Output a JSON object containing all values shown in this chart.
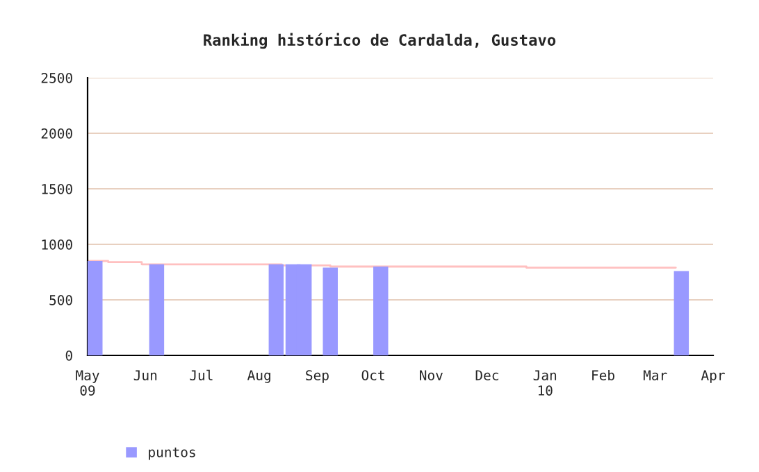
{
  "chart_data": {
    "type": "bar",
    "title": "Ranking histórico de Cardalda, Gustavo",
    "series": [
      {
        "name": "puntos",
        "color": "#9999ff",
        "x": [
          "2009-05-05",
          "2009-06-07",
          "2009-08-10",
          "2009-08-19",
          "2009-08-25",
          "2009-09-08",
          "2009-10-05",
          "2010-03-15"
        ],
        "values": [
          850,
          820,
          820,
          820,
          820,
          790,
          800,
          760
        ]
      },
      {
        "type": "step",
        "color": "#ffc0c0",
        "x": [
          "2009-05-01",
          "2009-05-12",
          "2009-05-30",
          "2009-08-13",
          "2009-09-08",
          "2009-12-22",
          "2010-03-12"
        ],
        "values": [
          850,
          840,
          820,
          810,
          800,
          790,
          790
        ]
      }
    ],
    "xlim": [
      "2009-05-01",
      "2010-04-01"
    ],
    "xticks": [
      {
        "value": "2009-05-01",
        "label": "May\n09"
      },
      {
        "value": "2009-06-01",
        "label": "Jun"
      },
      {
        "value": "2009-07-01",
        "label": "Jul"
      },
      {
        "value": "2009-08-01",
        "label": "Aug"
      },
      {
        "value": "2009-09-01",
        "label": "Sep"
      },
      {
        "value": "2009-10-01",
        "label": "Oct"
      },
      {
        "value": "2009-11-01",
        "label": "Nov"
      },
      {
        "value": "2009-12-01",
        "label": "Dec"
      },
      {
        "value": "2010-01-01",
        "label": "Jan\n10"
      },
      {
        "value": "2010-02-01",
        "label": "Feb"
      },
      {
        "value": "2010-03-01",
        "label": "Mar"
      },
      {
        "value": "2010-04-01",
        "label": "Apr"
      }
    ],
    "ylim": [
      0,
      2500
    ],
    "yticks": [
      0,
      500,
      1000,
      1500,
      2000,
      2500
    ],
    "grid": "y",
    "legend": "bottom left"
  }
}
